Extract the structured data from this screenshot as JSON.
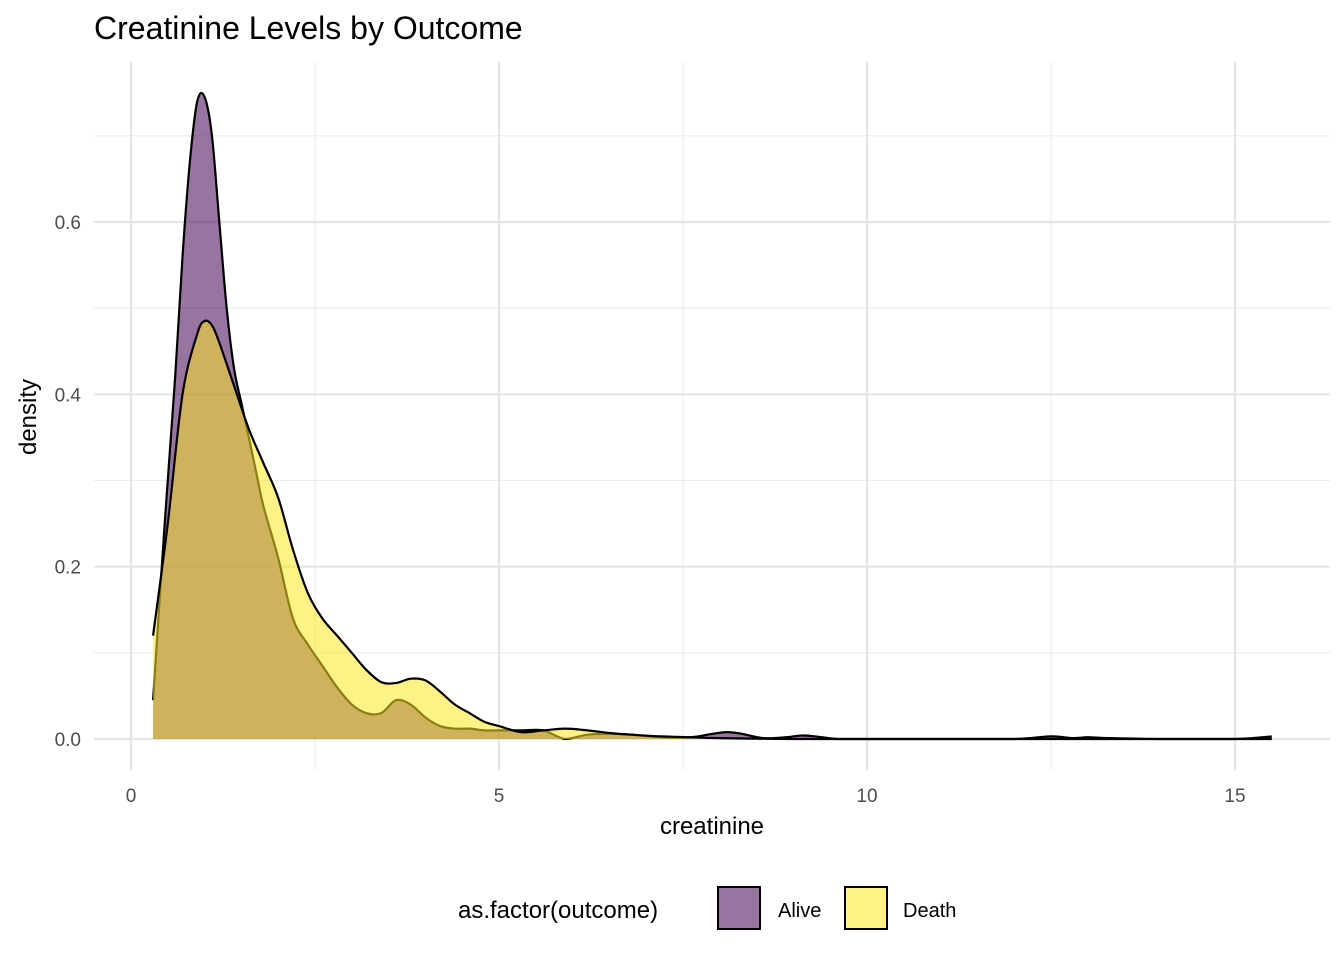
{
  "chart_data": {
    "type": "area",
    "title": "Creatinine Levels by Outcome",
    "xlabel": "creatinine",
    "ylabel": "density",
    "xlim": [
      -0.5,
      16
    ],
    "ylim": [
      -0.05,
      0.76
    ],
    "x_ticks": [
      0,
      5,
      10,
      15
    ],
    "x_tick_labels": [
      "0",
      "5",
      "10",
      "15"
    ],
    "y_ticks": [
      0.0,
      0.2,
      0.4,
      0.6
    ],
    "y_tick_labels": [
      "0.0",
      "0.2",
      "0.4",
      "0.6"
    ],
    "grid": true,
    "legend": {
      "title": "as.factor(outcome)",
      "position": "bottom",
      "entries": [
        "Alive",
        "Death"
      ]
    },
    "series": [
      {
        "name": "Alive",
        "color": "#440154",
        "opacity": 0.55,
        "x": [
          0.3,
          0.45,
          0.6,
          0.7,
          0.8,
          0.9,
          1.0,
          1.1,
          1.2,
          1.3,
          1.4,
          1.5,
          1.6,
          1.7,
          1.8,
          2.0,
          2.2,
          2.4,
          2.6,
          2.8,
          3.0,
          3.2,
          3.4,
          3.6,
          3.8,
          4.0,
          4.2,
          4.4,
          4.6,
          4.8,
          5.0,
          5.3,
          5.6,
          5.9,
          6.2,
          6.5,
          6.8,
          7.2,
          7.6,
          7.9,
          8.1,
          8.3,
          8.6,
          8.9,
          9.1,
          9.3,
          9.6,
          10.0,
          11.0,
          12.0,
          12.5,
          12.8,
          13.0,
          13.3,
          14.0,
          15.0,
          15.5
        ],
        "y": [
          0.045,
          0.24,
          0.42,
          0.56,
          0.67,
          0.74,
          0.745,
          0.7,
          0.6,
          0.5,
          0.43,
          0.39,
          0.35,
          0.31,
          0.27,
          0.21,
          0.14,
          0.11,
          0.085,
          0.06,
          0.04,
          0.03,
          0.03,
          0.045,
          0.04,
          0.025,
          0.015,
          0.012,
          0.012,
          0.01,
          0.01,
          0.01,
          0.01,
          0.0,
          0.005,
          0.006,
          0.005,
          0.002,
          0.002,
          0.006,
          0.008,
          0.006,
          0.001,
          0.002,
          0.004,
          0.003,
          0.0,
          0.0,
          0.0,
          0.0,
          0.003,
          0.001,
          0.002,
          0.001,
          0.0,
          0.0,
          0.003
        ]
      },
      {
        "name": "Death",
        "color": "#fde725",
        "opacity": 0.55,
        "x": [
          0.3,
          0.5,
          0.7,
          0.9,
          1.0,
          1.1,
          1.2,
          1.4,
          1.6,
          1.8,
          2.0,
          2.2,
          2.4,
          2.6,
          2.8,
          3.0,
          3.2,
          3.4,
          3.6,
          3.8,
          4.0,
          4.2,
          4.4,
          4.6,
          4.8,
          5.0,
          5.3,
          5.6,
          5.9,
          6.2,
          6.5,
          6.8,
          7.2,
          7.6,
          8.0,
          9.0,
          10.0,
          12.0,
          14.0,
          15.5
        ],
        "y": [
          0.12,
          0.25,
          0.4,
          0.47,
          0.485,
          0.48,
          0.46,
          0.41,
          0.36,
          0.32,
          0.28,
          0.22,
          0.17,
          0.14,
          0.12,
          0.1,
          0.08,
          0.066,
          0.065,
          0.07,
          0.068,
          0.055,
          0.04,
          0.03,
          0.02,
          0.015,
          0.008,
          0.01,
          0.012,
          0.01,
          0.007,
          0.005,
          0.003,
          0.002,
          0.001,
          0.0,
          0.0,
          0.0,
          0.0,
          0.0
        ]
      }
    ]
  }
}
